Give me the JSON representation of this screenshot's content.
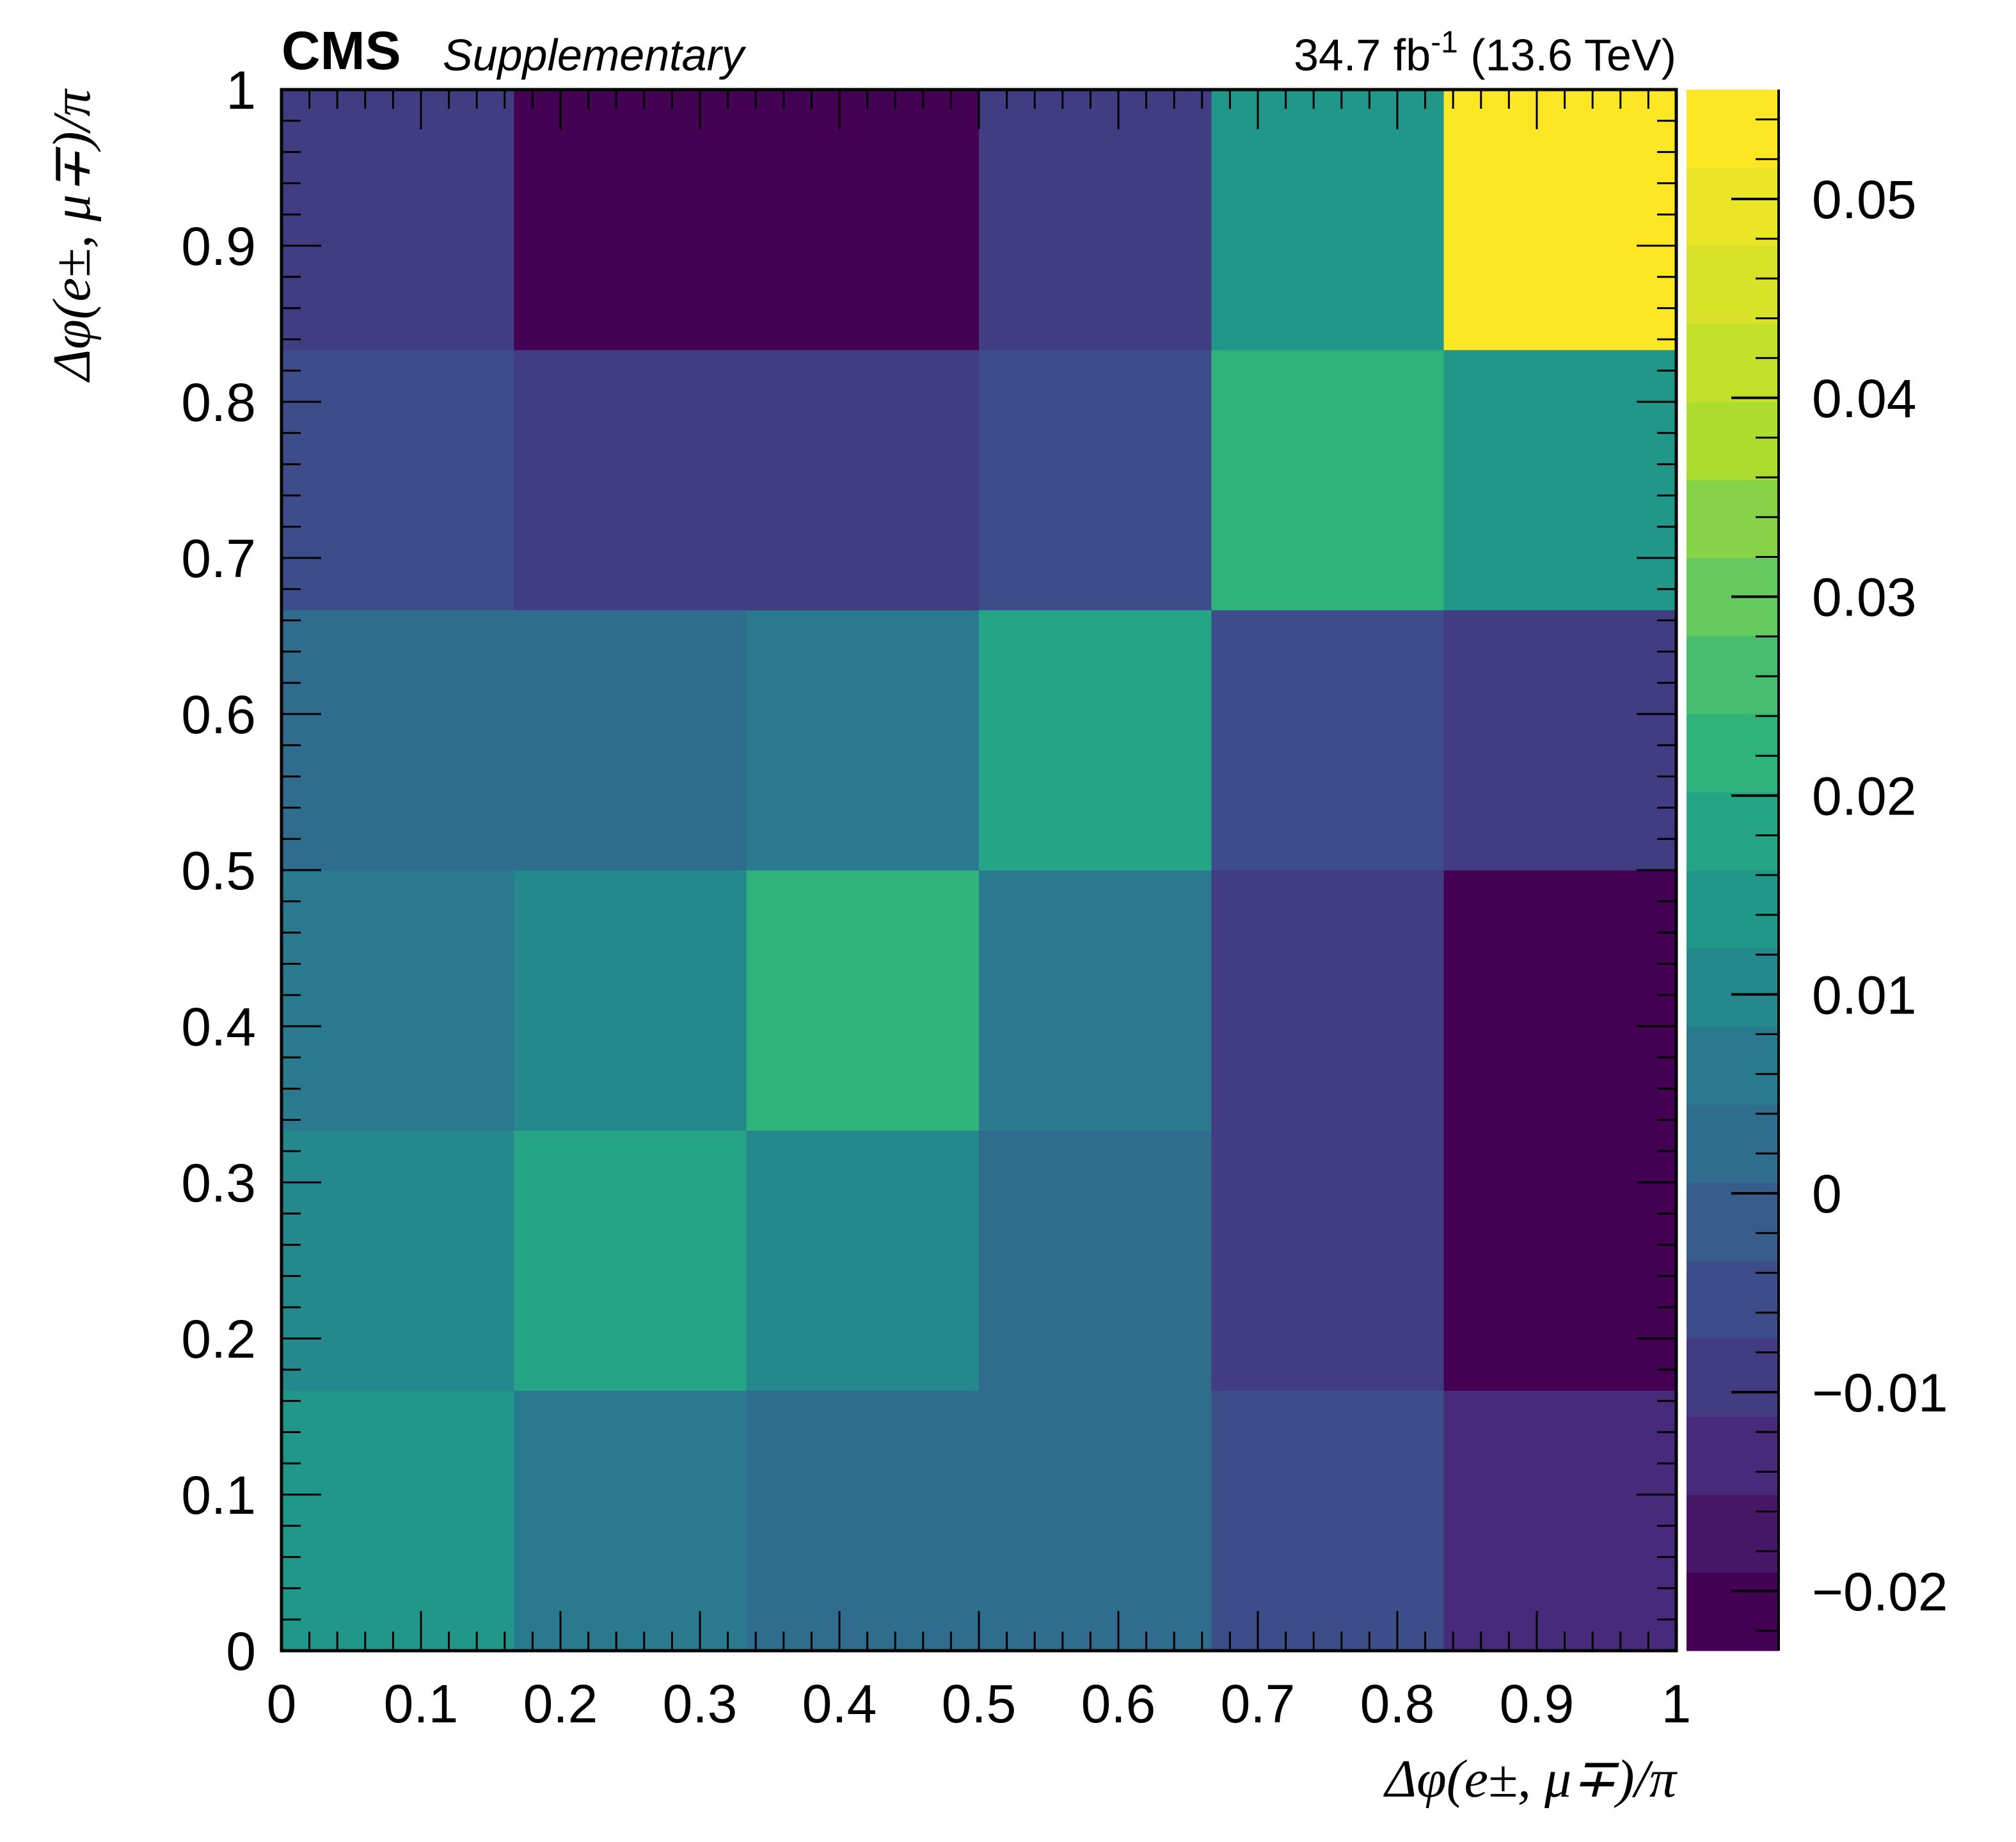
{
  "header": {
    "experiment": "CMS",
    "status": "Supplementary",
    "lumi": "34.7 fb",
    "lumi_exp": "-1",
    "energy": " (13.6 TeV)"
  },
  "chart_data": {
    "type": "heatmap",
    "xlabel": "Δφ(e±, μ∓)/π",
    "ylabel": "Δφ(e±, μ∓)/π",
    "xlim": [
      0,
      1
    ],
    "ylim": [
      0,
      1
    ],
    "x_bin_edges": [
      0,
      0.1667,
      0.3333,
      0.5,
      0.6667,
      0.8333,
      1.0
    ],
    "y_bin_edges": [
      0,
      0.1667,
      0.3333,
      0.5,
      0.6667,
      0.8333,
      1.0
    ],
    "values_rows_from_bottom": [
      [
        0.013,
        0.005,
        0.003,
        0.001,
        -0.006,
        -0.012
      ],
      [
        0.009,
        0.02,
        0.01,
        0.001,
        -0.011,
        -0.022
      ],
      [
        0.006,
        0.012,
        0.021,
        0.006,
        -0.011,
        -0.022
      ],
      [
        0.001,
        0.001,
        0.005,
        0.017,
        -0.004,
        -0.008
      ],
      [
        -0.006,
        -0.01,
        -0.01,
        -0.006,
        0.021,
        0.013
      ],
      [
        -0.011,
        -0.022,
        -0.022,
        -0.009,
        0.014,
        0.055
      ]
    ],
    "xticks": [
      "0",
      "0.1",
      "0.2",
      "0.3",
      "0.4",
      "0.5",
      "0.6",
      "0.7",
      "0.8",
      "0.9",
      "1"
    ],
    "yticks": [
      "0",
      "0.1",
      "0.2",
      "0.3",
      "0.4",
      "0.5",
      "0.6",
      "0.7",
      "0.8",
      "0.9",
      "1"
    ],
    "colorbar": {
      "min": -0.023,
      "max": 0.0555,
      "n_levels": 20,
      "ticks": [
        -0.02,
        -0.01,
        0,
        0.01,
        0.02,
        0.03,
        0.04,
        0.05
      ],
      "tick_labels": [
        "−0.02",
        "−0.01",
        "0",
        "0.01",
        "0.02",
        "0.03",
        "0.04",
        "0.05"
      ],
      "colormap": "viridis"
    }
  }
}
